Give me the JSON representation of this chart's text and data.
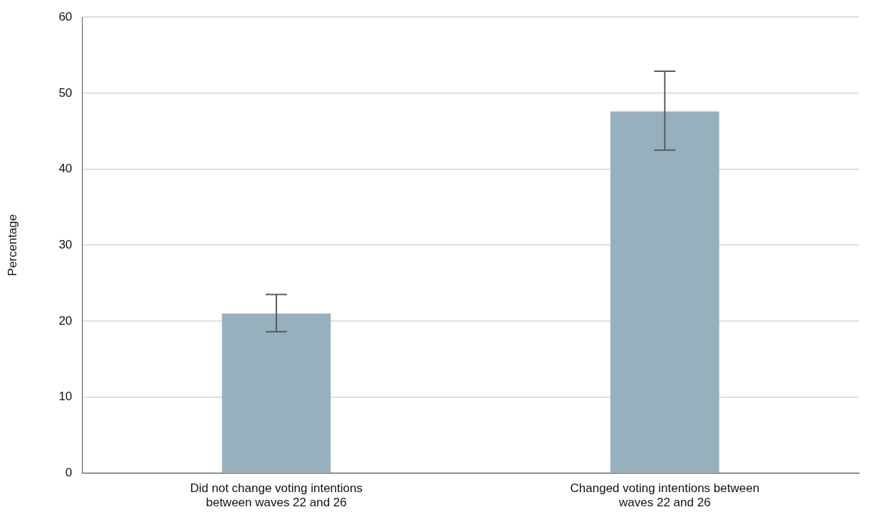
{
  "chart_data": {
    "type": "bar",
    "ylabel": "Percentage",
    "categories": [
      "Did not change voting intentions between waves 22 and 26",
      "Changed voting intentions between waves 22 and 26"
    ],
    "values": [
      21,
      47.6
    ],
    "color": "#97b0be",
    "errors": [
      [
        18.6,
        23.5
      ],
      [
        42.5,
        52.9
      ]
    ],
    "ylim": [
      0,
      60
    ],
    "yticks": [
      0,
      10,
      20,
      30,
      40,
      50,
      60
    ],
    "grid": "y",
    "legend": false
  }
}
